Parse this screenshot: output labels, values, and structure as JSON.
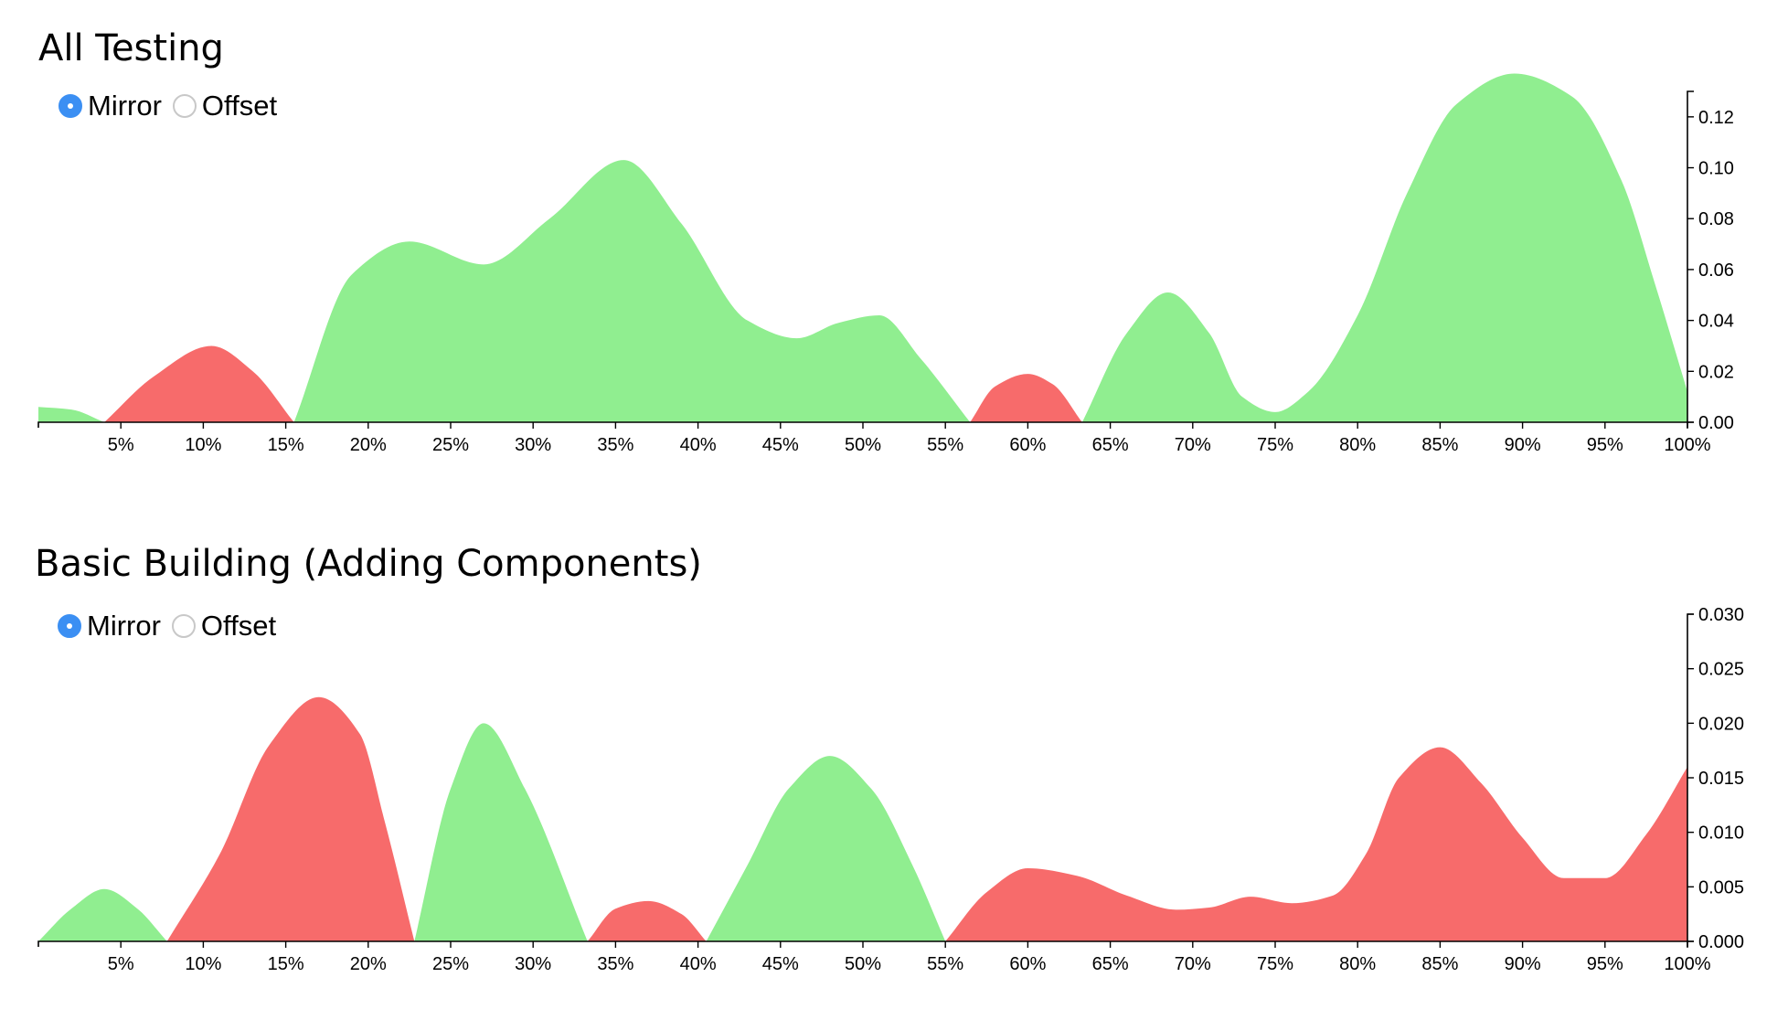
{
  "colors": {
    "positive": "#90ee90",
    "negative": "#f76b6b",
    "radio_checked": "#3b8ff3"
  },
  "charts": [
    {
      "title": "All Testing",
      "modes": [
        {
          "label": "Mirror",
          "checked": true
        },
        {
          "label": "Offset",
          "checked": false
        }
      ]
    },
    {
      "title": "Basic Building (Adding Components)",
      "modes": [
        {
          "label": "Mirror",
          "checked": true
        },
        {
          "label": "Offset",
          "checked": false
        }
      ]
    }
  ],
  "chart_data": [
    {
      "type": "area",
      "title": "All Testing",
      "xlabel": "",
      "ylabel": "",
      "xlim": [
        0,
        100
      ],
      "ylim": [
        0,
        0.13
      ],
      "x_ticks": [
        5,
        10,
        15,
        20,
        25,
        30,
        35,
        40,
        45,
        50,
        55,
        60,
        65,
        70,
        75,
        80,
        85,
        90,
        95,
        100
      ],
      "x_tick_labels": [
        "5%",
        "10%",
        "15%",
        "20%",
        "25%",
        "30%",
        "35%",
        "40%",
        "45%",
        "50%",
        "55%",
        "60%",
        "65%",
        "70%",
        "75%",
        "80%",
        "85%",
        "90%",
        "95%",
        "100%"
      ],
      "y_ticks": [
        0,
        0.02,
        0.04,
        0.06,
        0.08,
        0.1,
        0.12
      ],
      "y_tick_labels": [
        "0.00",
        "0.02",
        "0.04",
        "0.06",
        "0.08",
        "0.10",
        "0.12"
      ],
      "y_axis_side": "right",
      "grid": false,
      "series": [
        {
          "color_key": "positive",
          "x": [
            0,
            2,
            4
          ],
          "y": [
            0.006,
            0.005,
            0.0
          ]
        },
        {
          "color_key": "negative",
          "x": [
            4,
            7,
            10.5,
            13,
            15.5
          ],
          "y": [
            0.0,
            0.018,
            0.03,
            0.02,
            0.0
          ]
        },
        {
          "color_key": "positive",
          "x": [
            15.5,
            19,
            22.5,
            27,
            31,
            35.5,
            39,
            43,
            46,
            48.5,
            51,
            53.5,
            56.5
          ],
          "y": [
            0.0,
            0.058,
            0.071,
            0.062,
            0.08,
            0.103,
            0.078,
            0.04,
            0.033,
            0.039,
            0.042,
            0.025,
            0.0
          ]
        },
        {
          "color_key": "negative",
          "x": [
            56.5,
            58,
            60,
            61.5,
            63.3
          ],
          "y": [
            0.0,
            0.014,
            0.019,
            0.015,
            0.0
          ]
        },
        {
          "color_key": "positive",
          "x": [
            63.3,
            66,
            68.5,
            71,
            73,
            75,
            77,
            80,
            83,
            86,
            89.5,
            93,
            96,
            98,
            100
          ],
          "y": [
            0.0,
            0.035,
            0.051,
            0.035,
            0.01,
            0.004,
            0.012,
            0.042,
            0.09,
            0.125,
            0.137,
            0.128,
            0.095,
            0.055,
            0.012
          ]
        }
      ]
    },
    {
      "type": "area",
      "title": "Basic Building (Adding Components)",
      "xlabel": "",
      "ylabel": "",
      "xlim": [
        0,
        100
      ],
      "ylim": [
        0,
        0.03
      ],
      "x_ticks": [
        5,
        10,
        15,
        20,
        25,
        30,
        35,
        40,
        45,
        50,
        55,
        60,
        65,
        70,
        75,
        80,
        85,
        90,
        95,
        100
      ],
      "x_tick_labels": [
        "5%",
        "10%",
        "15%",
        "20%",
        "25%",
        "30%",
        "35%",
        "40%",
        "45%",
        "50%",
        "55%",
        "60%",
        "65%",
        "70%",
        "75%",
        "80%",
        "85%",
        "90%",
        "95%",
        "100%"
      ],
      "y_ticks": [
        0,
        0.005,
        0.01,
        0.015,
        0.02,
        0.025,
        0.03
      ],
      "y_tick_labels": [
        "0.000",
        "0.005",
        "0.010",
        "0.015",
        "0.020",
        "0.025",
        "0.030"
      ],
      "y_axis_side": "right",
      "grid": false,
      "series": [
        {
          "color_key": "positive",
          "x": [
            0,
            2,
            4,
            6,
            7.8
          ],
          "y": [
            0.0,
            0.003,
            0.0048,
            0.003,
            0.0
          ]
        },
        {
          "color_key": "negative",
          "x": [
            7.8,
            11,
            14,
            17,
            19.5,
            21,
            22.8
          ],
          "y": [
            0.0,
            0.008,
            0.018,
            0.0224,
            0.019,
            0.011,
            0.0
          ]
        },
        {
          "color_key": "positive",
          "x": [
            22.8,
            25,
            27,
            29.5,
            33.3
          ],
          "y": [
            0.0,
            0.014,
            0.02,
            0.014,
            0.0
          ]
        },
        {
          "color_key": "negative",
          "x": [
            33.3,
            35,
            37,
            39,
            40.5
          ],
          "y": [
            0.0,
            0.003,
            0.0037,
            0.0025,
            0.0
          ]
        },
        {
          "color_key": "positive",
          "x": [
            40.5,
            43,
            45.5,
            48,
            50.5,
            53,
            55
          ],
          "y": [
            0.0,
            0.007,
            0.014,
            0.017,
            0.014,
            0.007,
            0.0
          ]
        },
        {
          "color_key": "negative",
          "x": [
            55,
            57.5,
            60,
            63,
            66,
            69,
            71,
            73.5,
            76,
            78.5,
            80.5,
            82.5,
            85,
            87.5,
            90,
            92.5,
            95,
            97.5,
            100
          ],
          "y": [
            0.0,
            0.0045,
            0.0067,
            0.006,
            0.0042,
            0.0029,
            0.0031,
            0.0041,
            0.0035,
            0.0042,
            0.008,
            0.015,
            0.0178,
            0.0145,
            0.0095,
            0.0058,
            0.0058,
            0.0098,
            0.016
          ]
        }
      ]
    }
  ]
}
